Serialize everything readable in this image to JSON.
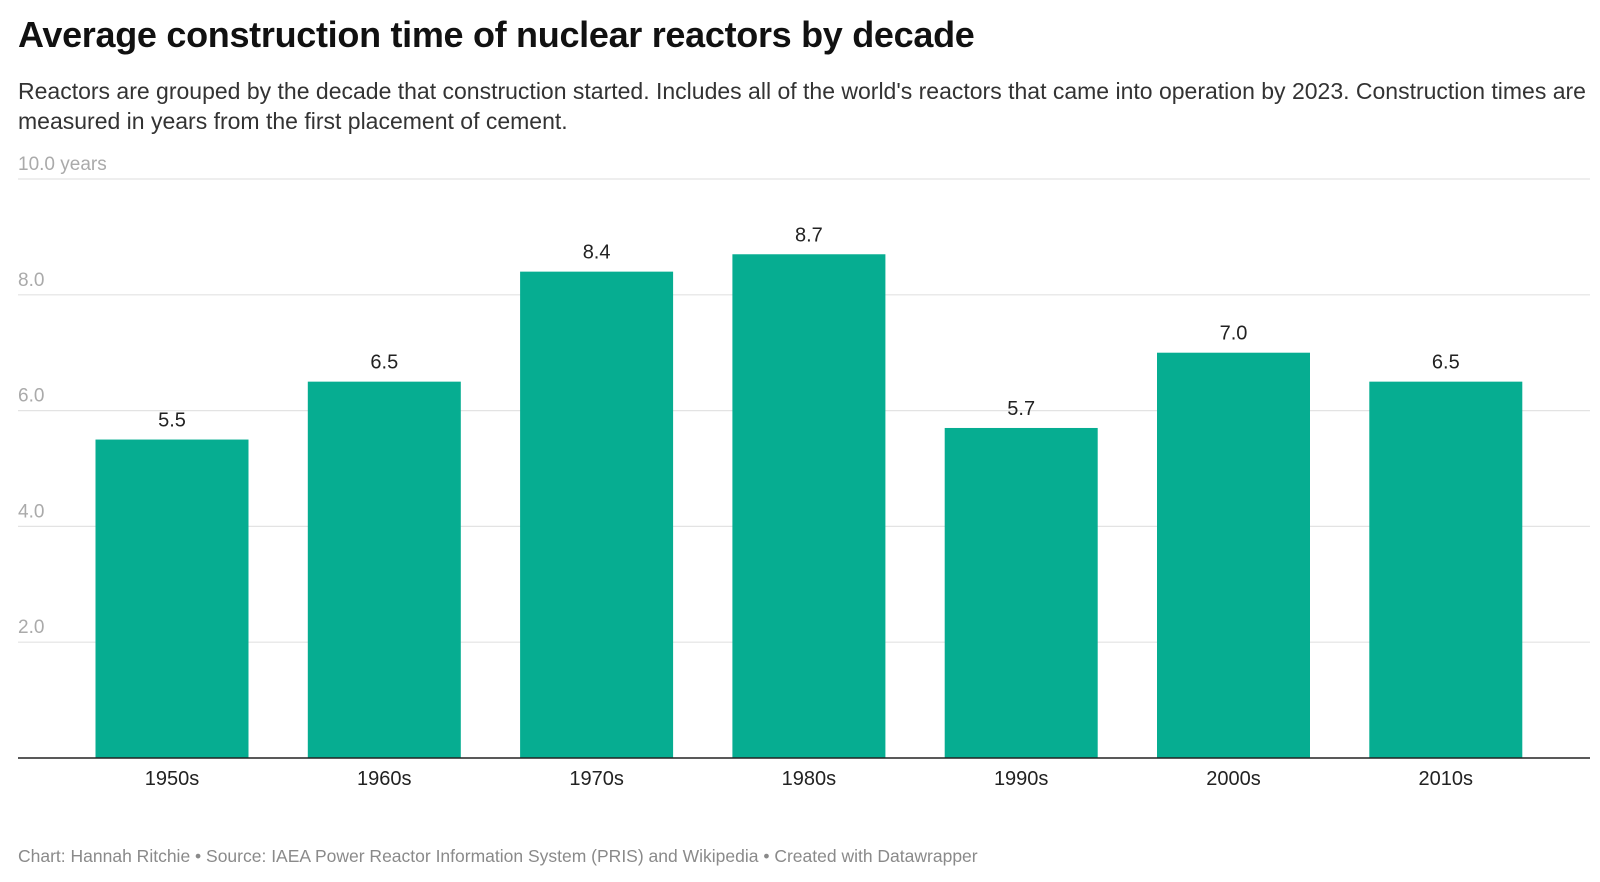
{
  "title": "Average construction time of nuclear reactors by decade",
  "subtitle": "Reactors are grouped by the decade that construction started. Includes all of the world's reactors that came into operation by 2023. Construction times are measured in years from the first placement of cement.",
  "footer": "Chart: Hannah Ritchie • Source: IAEA Power Reactor Information System (PRIS) and Wikipedia • Created with Datawrapper",
  "chart_data": {
    "type": "bar",
    "categories": [
      "1950s",
      "1960s",
      "1970s",
      "1980s",
      "1990s",
      "2000s",
      "2010s"
    ],
    "values": [
      5.5,
      6.5,
      8.4,
      8.7,
      5.7,
      7.0,
      6.5
    ],
    "value_labels": [
      "5.5",
      "6.5",
      "8.4",
      "8.7",
      "5.7",
      "7.0",
      "6.5"
    ],
    "yticks": [
      {
        "value": 2,
        "label": "2.0"
      },
      {
        "value": 4,
        "label": "4.0"
      },
      {
        "value": 6,
        "label": "6.0"
      },
      {
        "value": 8,
        "label": "8.0"
      },
      {
        "value": 10,
        "label": "10.0 years"
      }
    ],
    "ylim": [
      0,
      10
    ],
    "grid": true,
    "bar_color": "#06ad91",
    "xlabel": "",
    "ylabel": ""
  }
}
